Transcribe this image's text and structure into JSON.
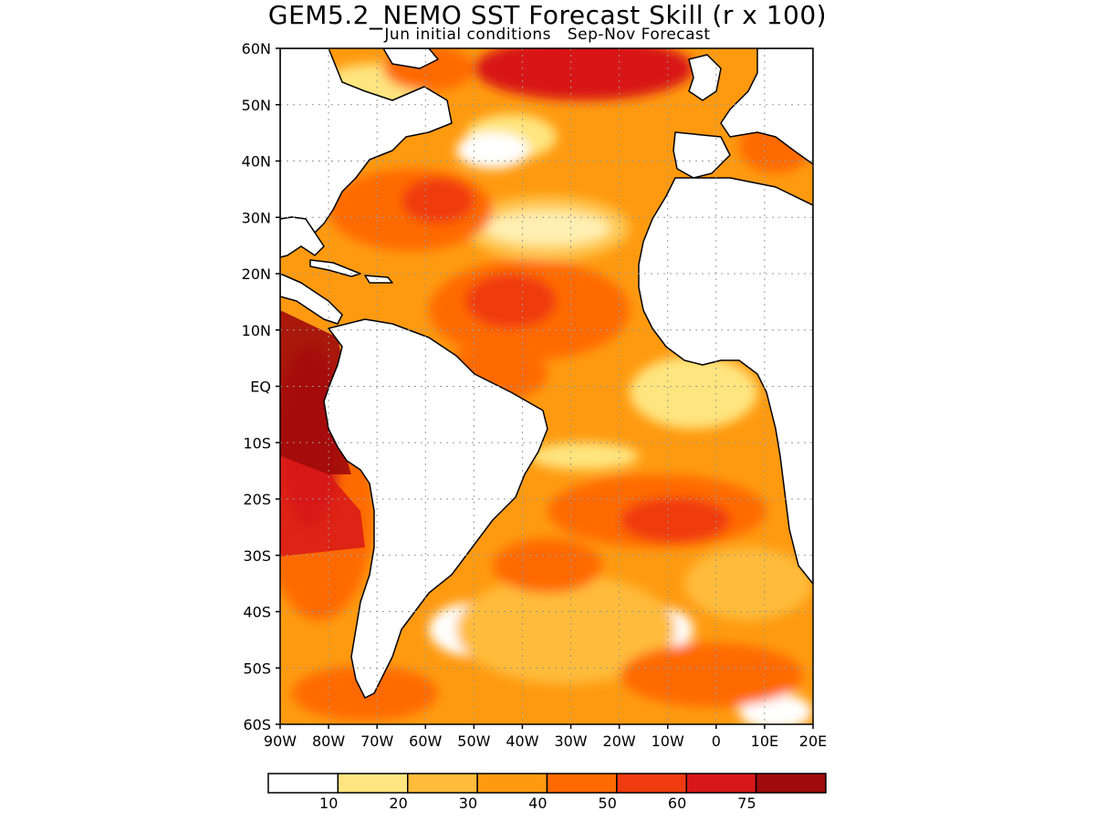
{
  "title": "GEM5.2_NEMO SST Forecast Skill (r x 100)",
  "subtitle": {
    "left": "Jun initial conditions",
    "right": "Sep-Nov Forecast"
  },
  "map": {
    "region": "Atlantic Ocean",
    "lat_labels": [
      "60N",
      "50N",
      "40N",
      "30N",
      "20N",
      "10N",
      "EQ",
      "10S",
      "20S",
      "30S",
      "40S",
      "50S",
      "60S"
    ],
    "lon_labels": [
      "90W",
      "80W",
      "70W",
      "60W",
      "50W",
      "40W",
      "30W",
      "20W",
      "10W",
      "0",
      "10E",
      "20E"
    ],
    "land_color": "#ffffff",
    "coastline_color": "#000000"
  },
  "legend": {
    "colors": [
      "#ffffff",
      "#ffe57f",
      "#ffbb3a",
      "#ff9a10",
      "#ff6a00",
      "#f03a10",
      "#d81818",
      "#a00a0a"
    ],
    "labels": [
      "10",
      "20",
      "30",
      "40",
      "50",
      "60",
      "75"
    ]
  }
}
